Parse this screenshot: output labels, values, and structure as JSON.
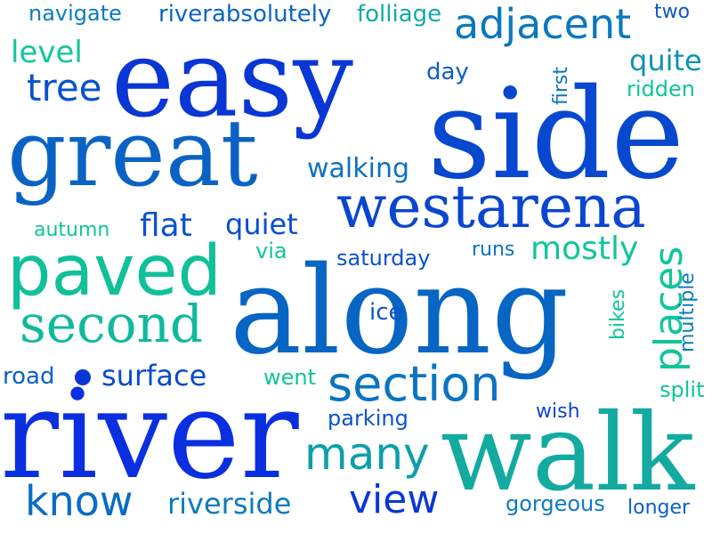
{
  "background": "#ffffff",
  "words": [
    {
      "text": "easy",
      "color": "#0a36d6"
    },
    {
      "text": "side",
      "color": "#0748cf"
    },
    {
      "text": "great",
      "color": "#0a63c4"
    },
    {
      "text": "westarena",
      "color": "#0a46d0"
    },
    {
      "text": "along",
      "color": "#0765c3"
    },
    {
      "text": "river",
      "color": "#0a2fe0"
    },
    {
      "text": "walk",
      "color": "#13aaa0"
    },
    {
      "text": "paved",
      "color": "#10c09a"
    },
    {
      "text": "second",
      "color": "#10b99e"
    },
    {
      "text": "section",
      "color": "#0b74c0"
    },
    {
      "text": "adjacent",
      "color": "#0b78be"
    },
    {
      "text": "tree",
      "color": "#0a52cb"
    },
    {
      "text": "places",
      "color": "#10c698"
    },
    {
      "text": "many",
      "color": "#0e9eab"
    },
    {
      "text": "view",
      "color": "#0837d6"
    },
    {
      "text": "know",
      "color": "#0a6cc3"
    },
    {
      "text": "riverside",
      "color": "#0b7bbe"
    },
    {
      "text": "surface",
      "color": "#0a4bce"
    },
    {
      "text": "mostly",
      "color": "#10c699"
    },
    {
      "text": "walking",
      "color": "#0a72c2"
    },
    {
      "text": "flat",
      "color": "#0a52ce"
    },
    {
      "text": "quiet",
      "color": "#0a4ecf"
    },
    {
      "text": "quite",
      "color": "#0d93b2"
    },
    {
      "text": "riverabsolutely",
      "color": "#0a64c6"
    },
    {
      "text": "folliage",
      "color": "#10aaa7"
    },
    {
      "text": "navigate",
      "color": "#0b7cbf"
    },
    {
      "text": "two",
      "color": "#0a55cb"
    },
    {
      "text": "level",
      "color": "#12c79a"
    },
    {
      "text": "day",
      "color": "#0a60c6"
    },
    {
      "text": "first",
      "color": "#0b76c0"
    },
    {
      "text": "ridden",
      "color": "#10c59a"
    },
    {
      "text": "autumn",
      "color": "#10c59a"
    },
    {
      "text": "via",
      "color": "#10c59a"
    },
    {
      "text": "saturday",
      "color": "#0a52cb"
    },
    {
      "text": "runs",
      "color": "#0b72c2"
    },
    {
      "text": "ice",
      "color": "#0a52cb"
    },
    {
      "text": "bikes",
      "color": "#10c59a"
    },
    {
      "text": "multiple",
      "color": "#0b7bc0"
    },
    {
      "text": "road",
      "color": "#0a60c6"
    },
    {
      "text": "went",
      "color": "#10c59a"
    },
    {
      "text": "split",
      "color": "#10c59a"
    },
    {
      "text": "parking",
      "color": "#0a55cb"
    },
    {
      "text": "wish",
      "color": "#0a46d0"
    },
    {
      "text": "gorgeous",
      "color": "#0b7bc0"
    },
    {
      "text": "longer",
      "color": "#0a60c6"
    }
  ],
  "dot_color": "#0a36d6"
}
